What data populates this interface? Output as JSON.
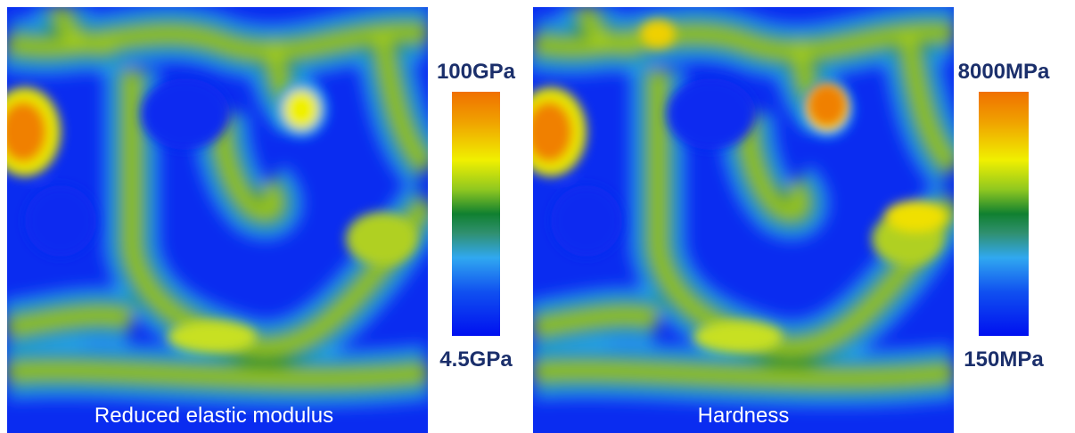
{
  "panels": [
    {
      "label": "Reduced elastic modulus",
      "scale_max": "100GPa",
      "scale_min": "4.5GPa"
    },
    {
      "label": "Hardness",
      "scale_max": "8000MPa",
      "scale_min": "150MPa"
    }
  ]
}
